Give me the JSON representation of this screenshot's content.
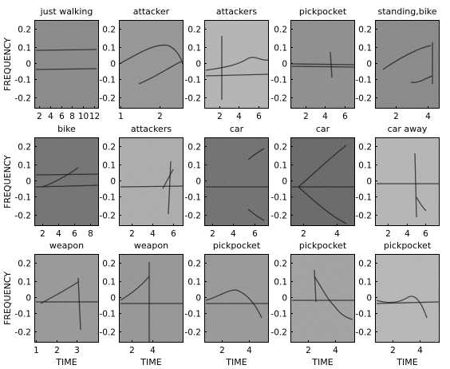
{
  "figure": {
    "ylabel": "FREQUENCY",
    "xlabel": "TIME",
    "yticks": [
      "0.2",
      "0.1",
      "0",
      "-0.1",
      "-0.2"
    ]
  },
  "chart_data": [
    {
      "type": "heatmap",
      "title": "just walking",
      "xticks": [
        "2",
        "4",
        "6",
        "8",
        "10",
        "12"
      ],
      "shade": "#7a7a7a"
    },
    {
      "type": "heatmap",
      "title": "attacker",
      "xticks": [
        "1",
        "2"
      ],
      "shade": "#8a8a8a"
    },
    {
      "type": "heatmap",
      "title": "attackers",
      "xticks": [
        "2",
        "4",
        "6"
      ],
      "shade": "#b2b2b2"
    },
    {
      "type": "heatmap",
      "title": "pickpocket",
      "xticks": [
        "2",
        "4",
        "6"
      ],
      "shade": "#808080"
    },
    {
      "type": "heatmap",
      "title": "standing,bike",
      "xticks": [
        "2",
        "4"
      ],
      "shade": "#7a7a7a"
    },
    {
      "type": "heatmap",
      "title": "bike",
      "xticks": [
        "2",
        "4",
        "6",
        "8"
      ],
      "shade": "#5c5c5c"
    },
    {
      "type": "heatmap",
      "title": "attackers",
      "xticks": [
        "2",
        "4",
        "6"
      ],
      "shade": "#a8a8a8"
    },
    {
      "type": "heatmap",
      "title": "car",
      "xticks": [
        "2",
        "4",
        "6"
      ],
      "shade": "#5a5a5a"
    },
    {
      "type": "heatmap",
      "title": "car",
      "xticks": [
        "2",
        "4"
      ],
      "shade": "#4e4e4e"
    },
    {
      "type": "heatmap",
      "title": "car away",
      "xticks": [
        "2",
        "4",
        "6"
      ],
      "shade": "#b4b4b4"
    },
    {
      "type": "heatmap",
      "title": "weapon",
      "xticks": [
        "1",
        "2",
        "3"
      ],
      "shade": "#8e8e8e"
    },
    {
      "type": "heatmap",
      "title": "weapon",
      "xticks": [
        "2",
        "4"
      ],
      "shade": "#8a8a8a"
    },
    {
      "type": "heatmap",
      "title": "pickpocket",
      "xticks": [
        "2",
        "4"
      ],
      "shade": "#8e8e8e"
    },
    {
      "type": "heatmap",
      "title": "pickpocket",
      "xticks": [
        "2",
        "4"
      ],
      "shade": "#9a9a9a"
    },
    {
      "type": "heatmap",
      "title": "pickpocket",
      "xticks": [
        "2",
        "4"
      ],
      "shade": "#b6b6b6"
    }
  ]
}
